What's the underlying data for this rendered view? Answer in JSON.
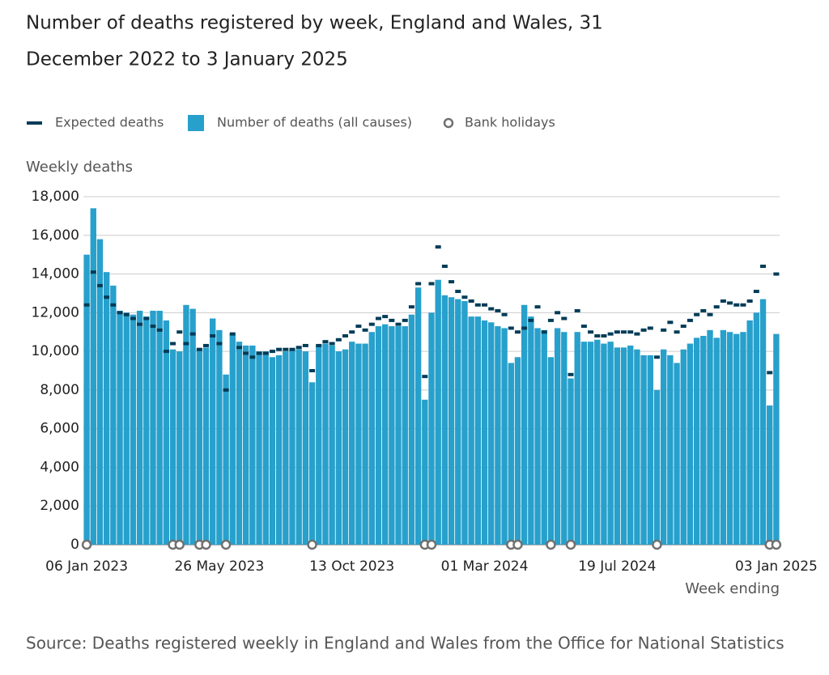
{
  "chart_data": {
    "type": "bar",
    "title": "Number of deaths registered by week, England and Wales, 31",
    "title_line2": "December 2022 to 3 January 2025",
    "y_label": "Weekly deaths",
    "x_label": "Week ending",
    "source": "Source: Deaths registered weekly in England and Wales from the Office for National Statistics",
    "categories": [
      "06 Jan 2023",
      null,
      null,
      null,
      null,
      null,
      null,
      null,
      null,
      null,
      null,
      null,
      null,
      null,
      null,
      null,
      null,
      null,
      null,
      null,
      "26 May 2023",
      null,
      null,
      null,
      null,
      null,
      null,
      null,
      null,
      null,
      null,
      null,
      null,
      null,
      null,
      null,
      null,
      null,
      null,
      null,
      "13 Oct 2023",
      null,
      null,
      null,
      null,
      null,
      null,
      null,
      null,
      null,
      null,
      null,
      null,
      null,
      null,
      null,
      null,
      null,
      null,
      null,
      "01 Mar 2024",
      null,
      null,
      null,
      null,
      null,
      null,
      null,
      null,
      null,
      null,
      null,
      null,
      null,
      null,
      null,
      null,
      null,
      null,
      null,
      "19 Jul 2024",
      null,
      null,
      null,
      null,
      null,
      null,
      null,
      null,
      null,
      null,
      null,
      null,
      null,
      null,
      null,
      null,
      null,
      null,
      null,
      null,
      null,
      null,
      null,
      "03 Jan 2025"
    ],
    "series": [
      {
        "name": "Expected deaths",
        "type": "dash",
        "color": "#003c57",
        "values": [
          12400,
          14100,
          13400,
          12800,
          12400,
          12000,
          11900,
          11700,
          11400,
          11700,
          11300,
          11100,
          10000,
          10400,
          11000,
          10400,
          10900,
          10100,
          10300,
          10800,
          10400,
          8000,
          10900,
          10200,
          9900,
          9700,
          9900,
          9900,
          10000,
          10100,
          10100,
          10100,
          10200,
          10300,
          9000,
          10300,
          10500,
          10400,
          10600,
          10800,
          11000,
          11300,
          11100,
          11400,
          11700,
          11800,
          11600,
          11400,
          11600,
          12300,
          13500,
          8700,
          13500,
          15400,
          14400,
          13600,
          13100,
          12800,
          12600,
          12400,
          12400,
          12200,
          12100,
          11900,
          11200,
          11000,
          11200,
          11600,
          12300,
          11000,
          11600,
          12000,
          11700,
          8800,
          12100,
          11300,
          11000,
          10800,
          10800,
          10900,
          11000,
          11000,
          11000,
          10900,
          11100,
          11200,
          9700,
          11100,
          11500,
          11000,
          11300,
          11600,
          11900,
          12100,
          11900,
          12300,
          12600,
          12500,
          12400,
          12400,
          12600,
          13100,
          14400,
          8900,
          14000
        ]
      },
      {
        "name": "Number of deaths (all causes)",
        "type": "bar",
        "color": "#27a0cc",
        "values": [
          15000,
          17400,
          15800,
          14100,
          13400,
          12100,
          12000,
          11900,
          12100,
          11800,
          12100,
          12100,
          11600,
          10100,
          10000,
          12400,
          12200,
          10100,
          10200,
          11700,
          11100,
          8800,
          10900,
          10500,
          10300,
          10300,
          10000,
          10000,
          9700,
          9800,
          10000,
          10100,
          10100,
          10000,
          8400,
          10300,
          10400,
          10300,
          10000,
          10100,
          10500,
          10400,
          10400,
          11000,
          11300,
          11400,
          11300,
          11300,
          11300,
          11900,
          13300,
          7500,
          12000,
          13700,
          12900,
          12800,
          12700,
          12600,
          11800,
          11800,
          11600,
          11500,
          11300,
          11200,
          9400,
          9700,
          12400,
          11800,
          11200,
          11100,
          9700,
          11200,
          11000,
          8600,
          11000,
          10500,
          10500,
          10600,
          10400,
          10500,
          10200,
          10200,
          10300,
          10100,
          9800,
          9800,
          8000,
          10100,
          9800,
          9400,
          10100,
          10400,
          10700,
          10800,
          11100,
          10700,
          11100,
          11000,
          10900,
          11000,
          11600,
          12000,
          12700,
          7200,
          10900
        ]
      },
      {
        "name": "Bank holidays",
        "type": "circle",
        "color": "#707070",
        "values": [
          0,
          null,
          null,
          null,
          null,
          null,
          null,
          null,
          null,
          null,
          null,
          null,
          null,
          0,
          0,
          null,
          null,
          0,
          0,
          null,
          null,
          0,
          null,
          null,
          null,
          null,
          null,
          null,
          null,
          null,
          null,
          null,
          null,
          null,
          0,
          null,
          null,
          null,
          null,
          null,
          null,
          null,
          null,
          null,
          null,
          null,
          null,
          null,
          null,
          null,
          null,
          0,
          0,
          null,
          null,
          null,
          null,
          null,
          null,
          null,
          null,
          null,
          null,
          null,
          0,
          0,
          null,
          null,
          null,
          null,
          0,
          null,
          null,
          0,
          null,
          null,
          null,
          null,
          null,
          null,
          null,
          null,
          null,
          null,
          null,
          null,
          0,
          null,
          null,
          null,
          null,
          null,
          null,
          null,
          null,
          null,
          null,
          null,
          null,
          null,
          null,
          null,
          null,
          0,
          0
        ]
      }
    ],
    "ylim": [
      0,
      18000
    ],
    "yticks": [
      0,
      {
        "value": 2000,
        "label": "2,000"
      },
      {
        "value": 4000,
        "label": "4,000"
      },
      {
        "value": 6000,
        "label": "6,000"
      },
      {
        "value": 8000,
        "label": "8,000"
      },
      {
        "value": 10000,
        "label": "10,000"
      },
      {
        "value": 12000,
        "label": "12,000"
      },
      {
        "value": 14000,
        "label": "14,000"
      },
      {
        "value": 16000,
        "label": "16,000"
      },
      {
        "value": 18000,
        "label": "18,000"
      }
    ],
    "grid": true
  }
}
